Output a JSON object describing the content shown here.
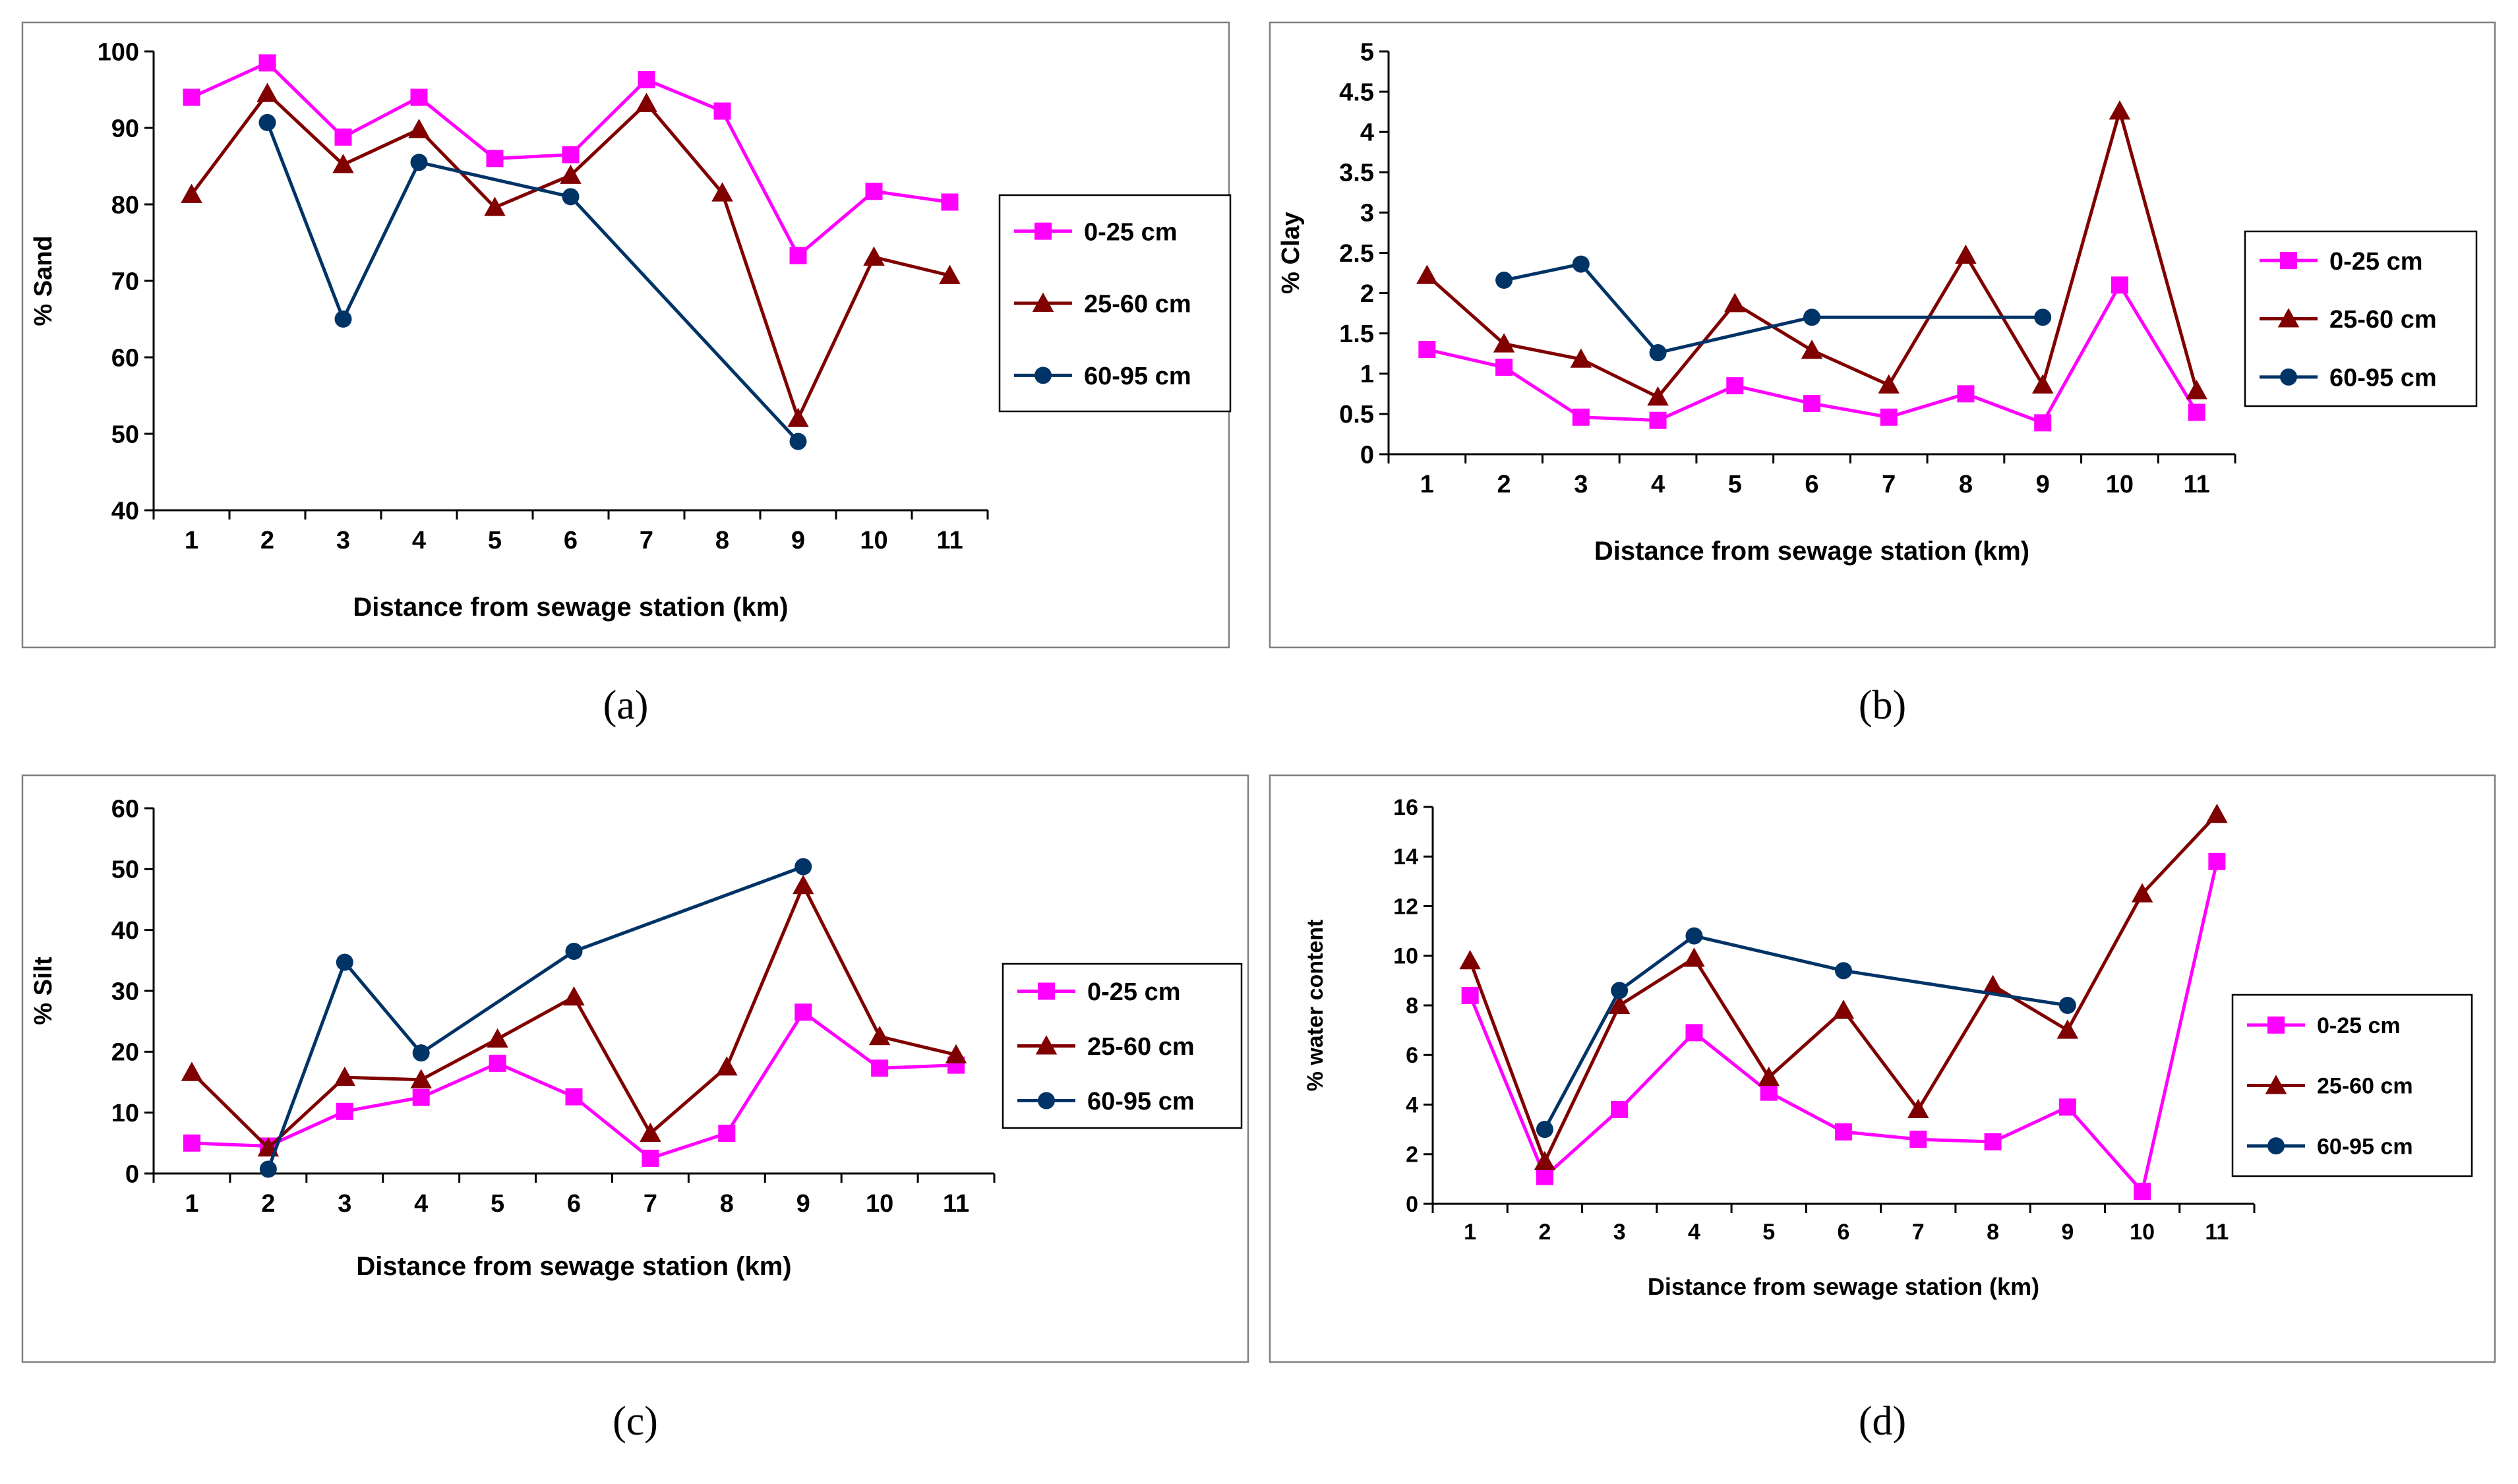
{
  "figure": {
    "captions": [
      "(a)",
      "(b)",
      "(c)",
      "(d)"
    ]
  },
  "colors": {
    "s0": "#ff00ff",
    "s1": "#800000",
    "s2": "#003366"
  },
  "chart_data": [
    {
      "type": "line",
      "caption": "(a)",
      "title": "",
      "xlabel": "Distance from sewage station (km)",
      "ylabel": "% Sand",
      "categories": [
        "1",
        "2",
        "3",
        "4",
        "5",
        "6",
        "7",
        "8",
        "9",
        "10",
        "11"
      ],
      "ylim": [
        40,
        100
      ],
      "yticks": [
        "40",
        "50",
        "60",
        "70",
        "80",
        "90",
        "100"
      ],
      "legend": "right",
      "series": [
        {
          "name": "0-25 cm",
          "marker": "square",
          "values": [
            94,
            98.5,
            88.8,
            94,
            86,
            86.5,
            96.3,
            92.2,
            73.3,
            81.7,
            80.3
          ]
        },
        {
          "name": "25-60 cm",
          "marker": "triangle",
          "values": [
            81.3,
            94.5,
            85.2,
            89.8,
            79.6,
            83.8,
            93.2,
            81.5,
            52,
            73.1,
            70.7
          ]
        },
        {
          "name": "60-95 cm",
          "marker": "circle",
          "values": [
            null,
            90.7,
            65,
            85.5,
            null,
            81,
            null,
            null,
            49,
            null,
            null
          ]
        }
      ]
    },
    {
      "type": "line",
      "caption": "(b)",
      "title": "",
      "xlabel": "Distance from sewage station (km)",
      "ylabel": "% Clay",
      "categories": [
        "1",
        "2",
        "3",
        "4",
        "5",
        "6",
        "7",
        "8",
        "9",
        "10",
        "11"
      ],
      "ylim": [
        0,
        5
      ],
      "yticks": [
        "0",
        "0.5",
        "1",
        "1.5",
        "2",
        "2.5",
        "3",
        "3.5",
        "4",
        "4.5",
        "5"
      ],
      "legend": "right",
      "series": [
        {
          "name": "0-25 cm",
          "marker": "square",
          "values": [
            1.3,
            1.08,
            0.46,
            0.42,
            0.85,
            0.63,
            0.46,
            0.75,
            0.39,
            2.1,
            0.52
          ]
        },
        {
          "name": "25-60 cm",
          "marker": "triangle",
          "values": [
            2.22,
            1.37,
            1.18,
            0.71,
            1.87,
            1.29,
            0.86,
            2.47,
            0.86,
            4.26,
            0.79
          ]
        },
        {
          "name": "60-95 cm",
          "marker": "circle",
          "values": [
            null,
            2.16,
            2.36,
            1.26,
            null,
            1.7,
            null,
            null,
            1.7,
            null,
            null
          ]
        }
      ]
    },
    {
      "type": "line",
      "caption": "(c)",
      "title": "",
      "xlabel": "Distance from sewage station (km)",
      "ylabel": "% Silt",
      "categories": [
        "1",
        "2",
        "3",
        "4",
        "5",
        "6",
        "7",
        "8",
        "9",
        "10",
        "11"
      ],
      "ylim": [
        0,
        60
      ],
      "yticks": [
        "0",
        "10",
        "20",
        "30",
        "40",
        "50",
        "60"
      ],
      "legend": "right",
      "series": [
        {
          "name": "0-25 cm",
          "marker": "square",
          "values": [
            5,
            4.5,
            10.2,
            12.5,
            18.1,
            12.6,
            2.5,
            6.6,
            26.5,
            17.3,
            17.8
          ]
        },
        {
          "name": "25-60 cm",
          "marker": "triangle",
          "values": [
            16.6,
            4.2,
            15.8,
            15.4,
            22.1,
            29,
            6.6,
            17.5,
            47.3,
            22.5,
            19.5
          ]
        },
        {
          "name": "60-95 cm",
          "marker": "circle",
          "values": [
            null,
            0.7,
            34.7,
            19.8,
            null,
            36.5,
            null,
            null,
            50.4,
            null,
            null
          ]
        }
      ]
    },
    {
      "type": "line",
      "caption": "(d)",
      "title": "",
      "xlabel": "Distance from sewage station (km)",
      "ylabel": "% water content",
      "categories": [
        "1",
        "2",
        "3",
        "4",
        "5",
        "6",
        "7",
        "8",
        "9",
        "10",
        "11"
      ],
      "ylim": [
        0,
        16
      ],
      "yticks": [
        "0",
        "2",
        "4",
        "6",
        "8",
        "10",
        "12",
        "14",
        "16"
      ],
      "legend": "right",
      "series": [
        {
          "name": "0-25 cm",
          "marker": "square",
          "values": [
            8.4,
            1.1,
            3.8,
            6.9,
            4.5,
            2.9,
            2.6,
            2.5,
            3.9,
            0.5,
            13.8
          ]
        },
        {
          "name": "25-60 cm",
          "marker": "triangle",
          "values": [
            9.8,
            1.7,
            8,
            9.9,
            5.1,
            7.8,
            3.8,
            8.8,
            7,
            12.5,
            15.7
          ]
        },
        {
          "name": "60-95 cm",
          "marker": "circle",
          "values": [
            null,
            3,
            8.6,
            10.8,
            null,
            9.4,
            null,
            null,
            8,
            null,
            null
          ]
        }
      ]
    }
  ]
}
